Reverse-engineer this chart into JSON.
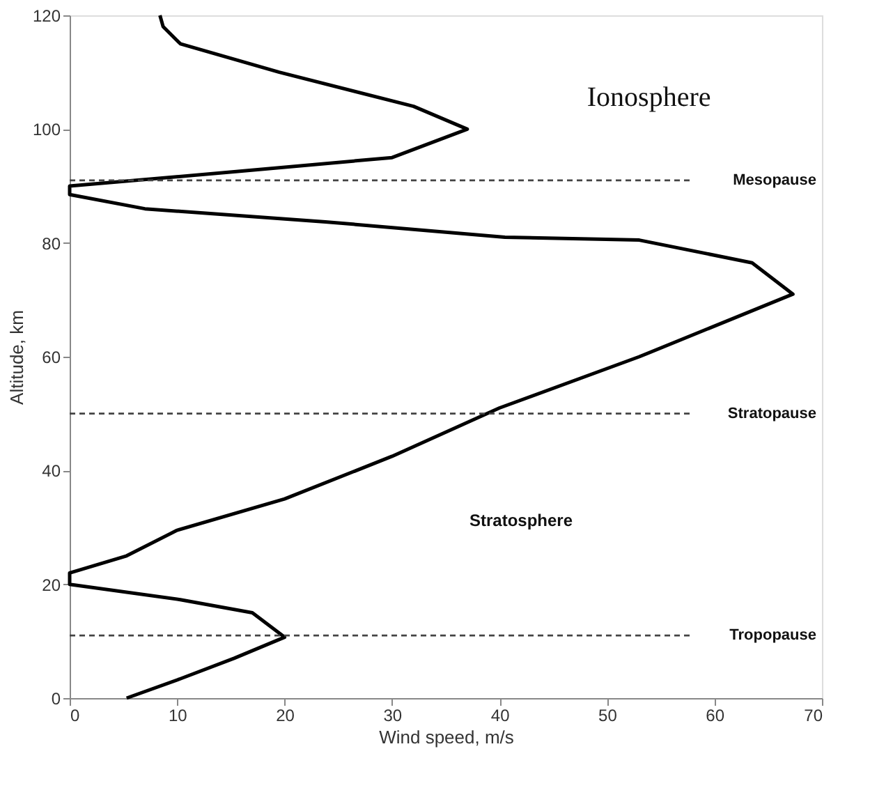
{
  "chart_data": {
    "type": "line",
    "xlabel": "Wind speed, m/s",
    "ylabel": "Altitude, km",
    "x": [
      5.3,
      10.3,
      15.3,
      20,
      17,
      10.3,
      0,
      0,
      5.3,
      10,
      20,
      30,
      40,
      53,
      67.3,
      63.5,
      53,
      40.5,
      23.8,
      7,
      0,
      0,
      15.3,
      30,
      37,
      32,
      19.5,
      10.3,
      8.7,
      8.4
    ],
    "series": [
      {
        "color": "#000000",
        "values": [
          0,
          3.4,
          7,
          10.7,
          15,
          17.3,
          20,
          22,
          25,
          29.5,
          35,
          42.5,
          51,
          60,
          71,
          76.5,
          80.5,
          81,
          83.7,
          86,
          88.5,
          90,
          92.5,
          95,
          100,
          104,
          110,
          115,
          118,
          120
        ]
      }
    ],
    "xlim": [
      0,
      70
    ],
    "ylim": [
      0,
      120
    ],
    "xticks": [
      0,
      10,
      20,
      30,
      40,
      50,
      60,
      70
    ],
    "yticks": [
      0,
      20,
      40,
      60,
      80,
      100,
      120
    ],
    "grid": false,
    "line_style": "solid",
    "marker": "none",
    "ref_lines": [
      {
        "axis": "y",
        "value": 11,
        "label": "Tropopause",
        "line_style": "dashed"
      },
      {
        "axis": "y",
        "value": 50,
        "label": "Stratopause",
        "line_style": "dashed"
      },
      {
        "axis": "y",
        "value": 91,
        "label": "Mesopause",
        "line_style": "dashed"
      }
    ],
    "annotations": [
      "Stratosphere",
      "Ionosphere"
    ]
  }
}
